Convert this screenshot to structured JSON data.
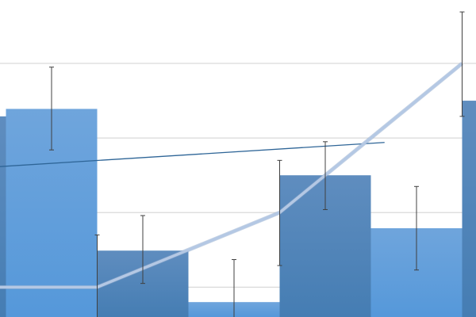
{
  "chart_data": {
    "type": "bar",
    "title": "",
    "xlabel": "",
    "ylabel": "",
    "grid": true,
    "gridlines_y": [
      1,
      2,
      3,
      4
    ],
    "xlim": [
      -0.5,
      5.7
    ],
    "ylim": [
      0.6,
      4.85
    ],
    "bars": {
      "x": [
        0,
        1,
        2,
        3,
        4,
        5,
        6
      ],
      "values": [
        3.29,
        3.39,
        1.49,
        0.8,
        2.5,
        1.79,
        3.5
      ],
      "error_high": [
        null,
        3.95,
        1.96,
        1.37,
        2.95,
        2.35,
        null
      ],
      "error_low": [
        null,
        2.84,
        1.05,
        0.3,
        2.04,
        1.23,
        null
      ],
      "colors": [
        "#4a7fb6",
        "#5b9bd9",
        "#4a7fb6",
        "#5b9bd9",
        "#4a7fb6",
        "#5b9bd9",
        "#4a7fb6"
      ]
    },
    "line": {
      "x": [
        -0.5,
        1.5,
        3.5,
        5.5
      ],
      "values": [
        1.0,
        1.0,
        2.0,
        4.0
      ],
      "error_high": [
        null,
        1.7,
        2.7,
        4.69
      ],
      "error_low": [
        null,
        0.3,
        1.29,
        3.29
      ],
      "color": "#b4c8e4"
    },
    "trendline": {
      "x": [
        -0.57,
        4.65
      ],
      "values": [
        2.54,
        2.94
      ],
      "color": "#2e6597"
    },
    "colors": {
      "grid": "#d9d9d9",
      "error_bar": "#404040"
    }
  }
}
